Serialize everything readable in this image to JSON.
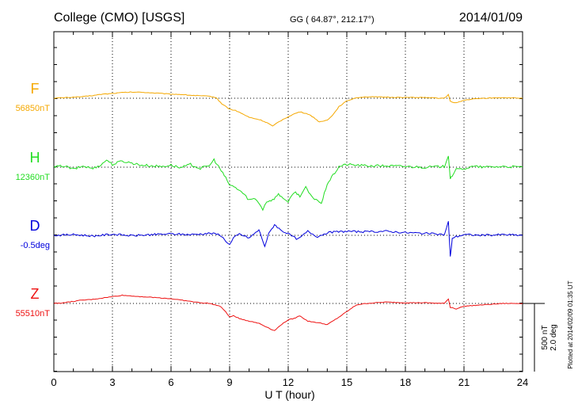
{
  "header": {
    "station": "College (CMO)  [USGS]",
    "coords": "GG ( 64.87°, 212.17°)",
    "date": "2014/01/09"
  },
  "footer_note": "Plotted at 2014/02/09 01:35 UT",
  "scale": {
    "nt": "500 nT",
    "deg": "2.0 deg"
  },
  "colors": {
    "F": "#f5a800",
    "H": "#22dd22",
    "D": "#0000dd",
    "Z": "#ee1111",
    "axis": "#000000"
  },
  "chart_data": {
    "type": "line",
    "title": "College (CMO)  [USGS]",
    "xlabel": "U T (hour)",
    "ylabel": "",
    "xlim": [
      0,
      24
    ],
    "xticks": [
      "0",
      "3",
      "6",
      "9",
      "12",
      "15",
      "18",
      "21",
      "24"
    ],
    "grid": true,
    "scale_bar": "500 nT / 2.0 deg",
    "series": [
      {
        "name": "F",
        "baseline_label": "56850nT",
        "color": "#f5a800",
        "x": [
          0,
          0.5,
          1,
          1.5,
          2,
          2.5,
          3,
          3.5,
          4,
          4.5,
          5,
          5.5,
          6,
          6.5,
          7,
          7.5,
          8,
          8.3,
          8.6,
          9,
          9.3,
          9.6,
          10,
          10.3,
          10.6,
          11,
          11.2,
          11.5,
          11.8,
          12,
          12.3,
          12.6,
          13,
          13.3,
          13.6,
          14,
          14.3,
          14.6,
          15,
          15.5,
          16,
          17,
          18,
          19,
          19.5,
          20,
          20.2,
          20.3,
          20.4,
          20.6,
          21,
          21.5,
          22,
          23,
          24
        ],
        "values": [
          0,
          4,
          8,
          12,
          20,
          30,
          35,
          42,
          45,
          44,
          40,
          35,
          30,
          28,
          22,
          18,
          14,
          5,
          -40,
          -80,
          -90,
          -110,
          -140,
          -150,
          -160,
          -185,
          -205,
          -175,
          -150,
          -135,
          -115,
          -100,
          -115,
          -140,
          -175,
          -160,
          -120,
          -60,
          -20,
          5,
          10,
          8,
          6,
          5,
          2,
          0,
          25,
          -20,
          -30,
          -35,
          -15,
          -5,
          0,
          5,
          0
        ]
      },
      {
        "name": "H",
        "baseline_label": "12360nT",
        "color": "#22dd22",
        "x": [
          0,
          0.5,
          1,
          1.5,
          2,
          2.5,
          2.7,
          3,
          3.5,
          4,
          4.5,
          5,
          5.5,
          6,
          6.5,
          7,
          7.5,
          8,
          8.2,
          8.5,
          8.8,
          9,
          9.3,
          9.6,
          10,
          10.3,
          10.5,
          10.7,
          10.9,
          11.2,
          11.5,
          11.8,
          12,
          12.3,
          12.6,
          12.9,
          13.2,
          13.5,
          13.7,
          14,
          14.3,
          14.6,
          15,
          15.5,
          16,
          17,
          18,
          19,
          20,
          20.2,
          20.3,
          20.4,
          20.6,
          21,
          21.5,
          22,
          23,
          24
        ],
        "values": [
          0,
          10,
          -15,
          8,
          -10,
          25,
          55,
          20,
          45,
          30,
          15,
          10,
          5,
          15,
          -5,
          20,
          -10,
          15,
          55,
          -10,
          -80,
          -130,
          -150,
          -180,
          -240,
          -230,
          -260,
          -310,
          -250,
          -240,
          -200,
          -230,
          -260,
          -180,
          -210,
          -150,
          -220,
          -240,
          -270,
          -120,
          -60,
          5,
          20,
          15,
          10,
          10,
          5,
          0,
          5,
          90,
          -80,
          -60,
          -20,
          -10,
          5,
          0,
          5,
          0
        ]
      },
      {
        "name": "D",
        "baseline_label": "-0.5deg",
        "color": "#0000dd",
        "x": [
          0,
          1,
          2,
          3,
          4,
          5,
          6,
          7,
          8,
          8.5,
          8.8,
          9,
          9.2,
          9.5,
          10,
          10.5,
          10.8,
          11,
          11.3,
          11.6,
          12,
          12.5,
          13,
          13.5,
          14,
          15,
          16,
          17,
          18,
          19,
          20,
          20.2,
          20.3,
          20.4,
          20.6,
          21,
          22,
          23,
          24
        ],
        "values": [
          0,
          5,
          -5,
          8,
          -3,
          5,
          10,
          5,
          15,
          5,
          -40,
          -70,
          -20,
          10,
          -20,
          40,
          -80,
          10,
          80,
          40,
          10,
          -30,
          30,
          -10,
          20,
          30,
          25,
          30,
          20,
          15,
          5,
          100,
          -160,
          -20,
          -10,
          5,
          0,
          5,
          0
        ]
      },
      {
        "name": "Z",
        "baseline_label": "55510nT",
        "color": "#ee1111",
        "x": [
          0,
          0.5,
          1,
          1.5,
          2,
          2.5,
          3,
          3.5,
          4,
          4.5,
          5,
          5.5,
          6,
          6.5,
          7,
          7.5,
          8,
          8.5,
          8.8,
          9,
          9.2,
          9.5,
          10,
          10.5,
          11,
          11.3,
          11.6,
          12,
          12.3,
          12.6,
          13,
          13.5,
          14,
          14.5,
          15,
          15.5,
          16,
          17,
          18,
          19,
          20,
          20.2,
          20.3,
          20.4,
          20.6,
          21,
          22,
          23,
          24
        ],
        "values": [
          0,
          5,
          15,
          25,
          30,
          40,
          50,
          60,
          55,
          50,
          45,
          40,
          35,
          25,
          15,
          5,
          0,
          -20,
          -60,
          -100,
          -90,
          -110,
          -130,
          -145,
          -180,
          -200,
          -160,
          -120,
          -110,
          -90,
          -130,
          -140,
          -155,
          -110,
          -60,
          -10,
          0,
          10,
          5,
          5,
          0,
          35,
          -30,
          -30,
          -40,
          -20,
          -10,
          0,
          0
        ]
      }
    ]
  }
}
